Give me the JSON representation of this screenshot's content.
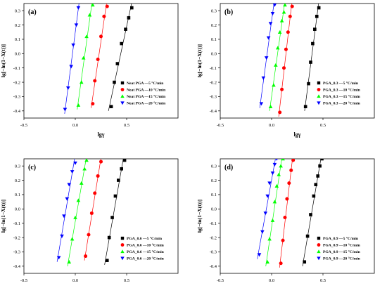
{
  "chart_data": [
    {
      "type": "scatter",
      "panel_label": "(a)",
      "xlabel": "lgγ",
      "ylabel": "lg[−ln(1−X(t))]",
      "xlim": [
        -0.5,
        1.0
      ],
      "ylim": [
        -0.45,
        0.35
      ],
      "x_ticks": [
        "-0.5",
        "0.0",
        "0.5"
      ],
      "y_ticks": [
        "-0.4",
        "-0.3",
        "-0.2",
        "-0.1",
        "0.0",
        "0.1",
        "0.2",
        "0.3"
      ],
      "legend_position": "lower-right",
      "series": [
        {
          "name": "Neat PGA —5 °C/min",
          "marker": "square",
          "color": "#000000",
          "x": [
            0.35,
            0.38,
            0.41,
            0.45,
            0.49,
            0.52,
            0.55
          ],
          "y": [
            -0.37,
            -0.2,
            -0.07,
            0.07,
            0.17,
            0.25,
            0.32
          ]
        },
        {
          "name": "Neat PGA —10 °C/min",
          "marker": "circle",
          "color": "#ff0000",
          "x": [
            0.17,
            0.19,
            0.22,
            0.25,
            0.28,
            0.31
          ],
          "y": [
            -0.35,
            -0.19,
            -0.04,
            0.12,
            0.26,
            0.33
          ]
        },
        {
          "name": "Neat PGA —15 °C/min",
          "marker": "triangle-up",
          "color": "#00ff00",
          "x": [
            0.03,
            0.06,
            0.08,
            0.11,
            0.14,
            0.17
          ],
          "y": [
            -0.36,
            -0.2,
            -0.03,
            0.12,
            0.27,
            0.34
          ]
        },
        {
          "name": "Neat PGA —20 °C/min",
          "marker": "triangle-down",
          "color": "#0000ff",
          "x": [
            -0.1,
            -0.07,
            -0.04,
            -0.02,
            0.01,
            0.03
          ],
          "y": [
            -0.39,
            -0.24,
            -0.09,
            0.06,
            0.2,
            0.32
          ]
        }
      ]
    },
    {
      "type": "scatter",
      "panel_label": "(b)",
      "xlabel": "lgγ",
      "ylabel": "lg[−ln(1−X(t))]",
      "xlim": [
        -0.5,
        1.0
      ],
      "ylim": [
        -0.45,
        0.35
      ],
      "x_ticks": [
        "-0.5",
        "0.0",
        "0.5"
      ],
      "y_ticks": [
        "-0.4",
        "-0.3",
        "-0.2",
        "-0.1",
        "0.0",
        "0.1",
        "0.2",
        "0.3"
      ],
      "legend_position": "lower-right",
      "series": [
        {
          "name": "PGA_0.3 —5 °C/min",
          "marker": "square",
          "color": "#000000",
          "x": [
            0.33,
            0.36,
            0.38,
            0.4,
            0.42,
            0.44,
            0.46
          ],
          "y": [
            -0.37,
            -0.21,
            -0.06,
            0.07,
            0.17,
            0.26,
            0.32
          ]
        },
        {
          "name": "PGA_0.3 —10 °C/min",
          "marker": "circle",
          "color": "#ff0000",
          "x": [
            0.08,
            0.1,
            0.12,
            0.14,
            0.16,
            0.18,
            0.2
          ],
          "y": [
            -0.41,
            -0.25,
            -0.1,
            0.03,
            0.15,
            0.26,
            0.33
          ]
        },
        {
          "name": "PGA_0.3 —15 °C/min",
          "marker": "triangle-up",
          "color": "#00ff00",
          "x": [
            -0.01,
            0.02,
            0.04,
            0.06,
            0.08,
            0.1,
            0.12,
            0.13
          ],
          "y": [
            -0.37,
            -0.22,
            -0.08,
            0.04,
            0.15,
            0.23,
            0.29,
            0.34
          ]
        },
        {
          "name": "PGA_0.3 —20 °C/min",
          "marker": "triangle-down",
          "color": "#0000ff",
          "x": [
            -0.1,
            -0.08,
            -0.05,
            -0.03,
            -0.01,
            0.01,
            0.03
          ],
          "y": [
            -0.35,
            -0.17,
            -0.03,
            0.11,
            0.21,
            0.28,
            0.34
          ]
        }
      ]
    },
    {
      "type": "scatter",
      "panel_label": "(c)",
      "xlabel": "lgγ",
      "ylabel": "lg[−ln(1−X(t))]",
      "xlim": [
        -0.5,
        1.0
      ],
      "ylim": [
        -0.45,
        0.35
      ],
      "x_ticks": [
        "-0.5",
        "0.0",
        "0.5"
      ],
      "y_ticks": [
        "-0.4",
        "-0.3",
        "-0.2",
        "-0.1",
        "0.0",
        "0.1",
        "0.2",
        "0.3"
      ],
      "legend_position": "lower-right",
      "series": [
        {
          "name": "PGA_0.6 —5 °C/min",
          "marker": "square",
          "color": "#000000",
          "x": [
            0.31,
            0.33,
            0.36,
            0.39,
            0.42,
            0.45,
            0.48
          ],
          "y": [
            -0.36,
            -0.2,
            -0.06,
            0.09,
            0.2,
            0.28,
            0.34
          ]
        },
        {
          "name": "PGA_0.6 —10 °C/min",
          "marker": "circle",
          "color": "#ff0000",
          "x": [
            0.1,
            0.13,
            0.16,
            0.19,
            0.22,
            0.25
          ],
          "y": [
            -0.33,
            -0.18,
            -0.03,
            0.11,
            0.23,
            0.33
          ]
        },
        {
          "name": "PGA_0.6 —15 °C/min",
          "marker": "triangle-up",
          "color": "#00ff00",
          "x": [
            -0.06,
            -0.03,
            0.0,
            0.03,
            0.06,
            0.09,
            0.11
          ],
          "y": [
            -0.37,
            -0.21,
            -0.06,
            0.06,
            0.18,
            0.28,
            0.34
          ]
        },
        {
          "name": "PGA_0.6 —20 °C/min",
          "marker": "triangle-down",
          "color": "#0000ff",
          "x": [
            -0.16,
            -0.13,
            -0.11,
            -0.08,
            -0.06,
            -0.03,
            0.0
          ],
          "y": [
            -0.34,
            -0.19,
            -0.05,
            0.07,
            0.17,
            0.26,
            0.32
          ]
        }
      ]
    },
    {
      "type": "scatter",
      "panel_label": "(d)",
      "xlabel": "lgγ",
      "ylabel": "lg[−ln(1−X(t))]",
      "xlim": [
        -0.5,
        1.0
      ],
      "ylim": [
        -0.45,
        0.35
      ],
      "x_ticks": [
        "-0.5",
        "0.0",
        "0.5"
      ],
      "y_ticks": [
        "-0.4",
        "-0.3",
        "-0.2",
        "-0.1",
        "0.0",
        "0.1",
        "0.2",
        "0.3"
      ],
      "legend_position": "lower-right",
      "series": [
        {
          "name": "PGA_0.9 —5 °C/min",
          "marker": "square",
          "color": "#000000",
          "x": [
            0.32,
            0.35,
            0.38,
            0.41,
            0.43,
            0.45,
            0.47,
            0.49
          ],
          "y": [
            -0.37,
            -0.19,
            -0.04,
            0.09,
            0.17,
            0.23,
            0.3,
            0.35
          ]
        },
        {
          "name": "PGA_0.9 —10 °C/min",
          "marker": "circle",
          "color": "#ff0000",
          "x": [
            0.09,
            0.11,
            0.13,
            0.15,
            0.17,
            0.19,
            0.21
          ],
          "y": [
            -0.38,
            -0.22,
            -0.06,
            0.07,
            0.18,
            0.27,
            0.34
          ]
        },
        {
          "name": "PGA_0.9 —15 °C/min",
          "marker": "triangle-up",
          "color": "#00ff00",
          "x": [
            -0.04,
            -0.02,
            0.01,
            0.03,
            0.05,
            0.07,
            0.09,
            0.11
          ],
          "y": [
            -0.37,
            -0.21,
            -0.08,
            0.05,
            0.16,
            0.24,
            0.3,
            0.35
          ]
        },
        {
          "name": "PGA_0.9 —20 °C/min",
          "marker": "triangle-down",
          "color": "#0000ff",
          "x": [
            -0.12,
            -0.09,
            -0.06,
            -0.04,
            -0.02,
            0.01,
            0.03,
            0.05
          ],
          "y": [
            -0.32,
            -0.16,
            -0.03,
            0.09,
            0.18,
            0.25,
            0.31,
            0.35
          ]
        }
      ]
    }
  ]
}
